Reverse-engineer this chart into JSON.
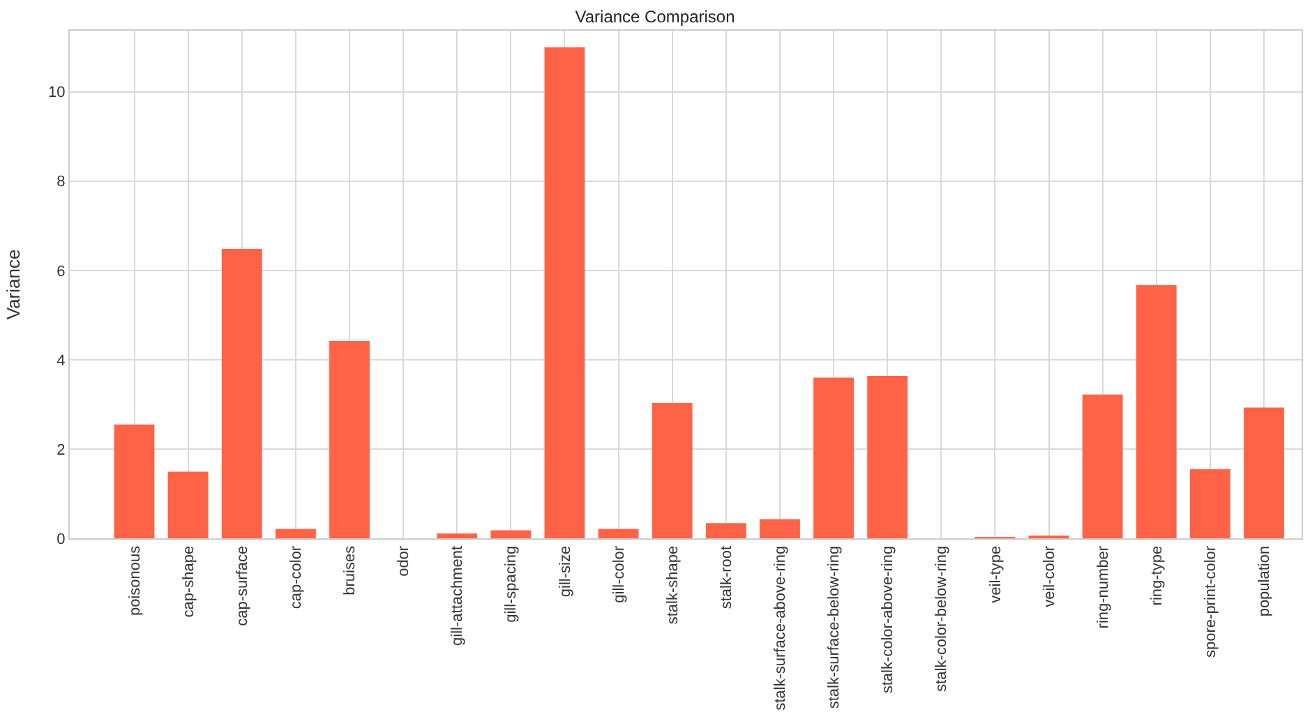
{
  "chart_data": {
    "type": "bar",
    "title": "Variance Comparison",
    "ylabel": "Variance",
    "categories": [
      "poisonous",
      "cap-shape",
      "cap-surface",
      "cap-color",
      "bruises",
      "odor",
      "gill-attachment",
      "gill-spacing",
      "gill-size",
      "gill-color",
      "stalk-shape",
      "stalk-root",
      "stalk-surface-above-ring",
      "stalk-surface-below-ring",
      "stalk-color-above-ring",
      "stalk-color-below-ring",
      "veil-type",
      "veil-color",
      "ring-number",
      "ring-type",
      "spore-print-color",
      "population"
    ],
    "values": [
      2.55,
      1.49,
      6.48,
      0.21,
      4.42,
      0,
      0.11,
      0.18,
      11.0,
      0.21,
      3.03,
      0.34,
      0.43,
      3.6,
      3.64,
      0,
      0.02,
      0.05,
      3.22,
      5.67,
      1.55,
      2.93
    ],
    "color": "#ff6347",
    "ylim": [
      0,
      11.37
    ],
    "yticks": [
      0,
      2,
      4,
      6,
      8,
      10
    ],
    "grid": true
  }
}
